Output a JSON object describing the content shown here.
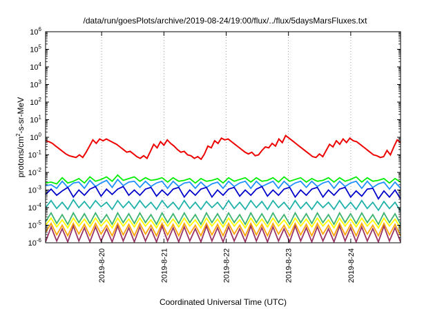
{
  "chart_data": {
    "type": "line",
    "title": "/data/run/goesPlots/archive/2019-08-24/19:00/flux/../flux/5daysMarsFluxes.txt",
    "xlabel": "Coordinated Universal Time (UTC)",
    "ylabel": {
      "pre": "protons/cm",
      "sup": "2",
      "post": "-s-sr-MeV"
    },
    "y_scale": "log",
    "ylim_exp": [
      -6,
      6
    ],
    "y_ticks": [
      {
        "base": "10",
        "exp": "6"
      },
      {
        "base": "10",
        "exp": "5"
      },
      {
        "base": "10",
        "exp": "4"
      },
      {
        "base": "10",
        "exp": "3"
      },
      {
        "base": "10",
        "exp": "2"
      },
      {
        "base": "10",
        "exp": "1"
      },
      {
        "base": "10",
        "exp": "0"
      },
      {
        "base": "10",
        "exp": "-1"
      },
      {
        "base": "10",
        "exp": "-2"
      },
      {
        "base": "10",
        "exp": "-3"
      },
      {
        "base": "10",
        "exp": "-4"
      },
      {
        "base": "10",
        "exp": "-5"
      },
      {
        "base": "10",
        "exp": "-6"
      }
    ],
    "x_ticks": [
      "2019-8-20",
      "2019-8-21",
      "2019-8-22",
      "2019-8-23",
      "2019-8-24"
    ],
    "xlim_days": [
      19.1,
      24.8
    ],
    "grid": true,
    "series": [
      {
        "color": "#ee0000",
        "log_values": [
          -0.2,
          -0.25,
          -0.35,
          -0.5,
          -0.65,
          -0.8,
          -0.95,
          -1.05,
          -1.1,
          -1.15,
          -1.0,
          -1.15,
          -0.85,
          -0.5,
          -0.15,
          -0.35,
          -0.1,
          -0.2,
          -0.1,
          -0.2,
          -0.3,
          -0.4,
          -0.55,
          -0.7,
          -0.85,
          -0.8,
          -0.95,
          -1.1,
          -1.2,
          -1.05,
          -1.2,
          -0.8,
          -0.4,
          -0.6,
          -0.25,
          -0.45,
          -0.15,
          -0.35,
          -0.5,
          -0.7,
          -0.85,
          -0.8,
          -1.0,
          -1.05,
          -1.2,
          -1.1,
          -1.25,
          -0.95,
          -0.5,
          -0.6,
          -0.2,
          -0.35,
          -0.05,
          -0.15,
          -0.1,
          -0.25,
          -0.4,
          -0.55,
          -0.7,
          -0.85,
          -0.95,
          -0.85,
          -1.05,
          -1.0,
          -0.75,
          -0.55,
          -0.6,
          -0.35,
          -0.5,
          -0.1,
          -0.3,
          0.1,
          -0.05,
          -0.2,
          -0.35,
          -0.5,
          -0.65,
          -0.8,
          -0.95,
          -1.1,
          -1.15,
          -0.95,
          -1.1,
          -0.75,
          -0.4,
          -0.55,
          -0.2,
          -0.4,
          -0.1,
          -0.3,
          -0.05,
          -0.2,
          -0.25,
          -0.4,
          -0.55,
          -0.7,
          -0.85,
          -1.0,
          -1.05,
          -1.15,
          -1.1,
          -0.75,
          -1.0,
          -0.55,
          -0.15,
          -0.3
        ]
      },
      {
        "color": "#00ee00",
        "log_values": [
          -2.6,
          -2.55,
          -2.65,
          -2.3,
          -2.6,
          -2.5,
          -2.35,
          -2.6,
          -2.25,
          -2.5,
          -2.4,
          -2.25,
          -2.5,
          -2.15,
          -2.45,
          -2.35,
          -2.25,
          -2.5,
          -2.3,
          -2.45,
          -2.4,
          -2.3,
          -2.55,
          -2.3,
          -2.5,
          -2.45,
          -2.35,
          -2.6,
          -2.35,
          -2.5,
          -2.45,
          -2.35,
          -2.6,
          -2.3,
          -2.5,
          -2.4,
          -2.3,
          -2.55,
          -2.3,
          -2.5,
          -2.45,
          -2.3,
          -2.55,
          -2.25,
          -2.5,
          -2.4,
          -2.3,
          -2.55,
          -2.35,
          -2.5,
          -2.45,
          -2.3,
          -2.55,
          -2.3,
          -2.5,
          -2.4,
          -2.25,
          -2.55,
          -2.3,
          -2.5,
          -2.45,
          -2.35,
          -2.6,
          -2.35,
          -2.55
        ]
      },
      {
        "color": "#1e90ff",
        "log_values": [
          -2.75,
          -2.7,
          -2.9,
          -2.5,
          -2.85,
          -2.6,
          -2.55,
          -2.9,
          -2.45,
          -2.8,
          -2.6,
          -2.45,
          -2.85,
          -2.4,
          -2.75,
          -2.55,
          -2.5,
          -2.85,
          -2.5,
          -2.8,
          -2.6,
          -2.5,
          -2.9,
          -2.5,
          -2.8,
          -2.6,
          -2.55,
          -2.9,
          -2.55,
          -2.85,
          -2.65,
          -2.55,
          -2.9,
          -2.5,
          -2.8,
          -2.6,
          -2.5,
          -2.9,
          -2.5,
          -2.8,
          -2.65,
          -2.5,
          -2.9,
          -2.5,
          -2.8,
          -2.6,
          -2.5,
          -2.85,
          -2.5,
          -2.8,
          -2.6,
          -2.5,
          -2.9,
          -2.5,
          -2.8,
          -2.6,
          -2.5,
          -2.9,
          -2.5,
          -2.85,
          -2.65,
          -2.55,
          -2.95,
          -2.55,
          -2.9
        ]
      },
      {
        "color": "#0000cc",
        "log_values": [
          -3.25,
          -2.95,
          -3.3,
          -3.05,
          -2.85,
          -3.4,
          -3.0,
          -3.3,
          -2.95,
          -2.8,
          -3.35,
          -2.95,
          -3.25,
          -2.95,
          -2.8,
          -3.3,
          -3.0,
          -3.3,
          -2.95,
          -2.85,
          -3.35,
          -3.0,
          -3.3,
          -2.95,
          -2.85,
          -3.4,
          -3.0,
          -3.3,
          -2.95,
          -2.85,
          -3.4,
          -3.0,
          -3.3,
          -2.95,
          -2.85,
          -3.35,
          -3.0,
          -3.3,
          -2.95,
          -2.8,
          -3.35,
          -3.0,
          -3.3,
          -2.95,
          -2.85,
          -3.4,
          -3.0,
          -3.3,
          -2.95,
          -2.85,
          -3.4,
          -3.0,
          -3.3,
          -2.95,
          -2.85,
          -3.4,
          -3.05,
          -3.35,
          -2.95,
          -2.9,
          -3.5,
          -3.05,
          -3.4,
          -3.0,
          -3.5
        ]
      },
      {
        "color": "#20b2aa",
        "log_values": [
          -4.0,
          -3.6,
          -4.05,
          -3.7,
          -4.1,
          -3.55,
          -4.0,
          -3.65,
          -4.05,
          -3.6,
          -3.95,
          -3.7,
          -4.1,
          -3.6,
          -4.0,
          -3.65,
          -4.05,
          -3.6,
          -4.0,
          -3.7,
          -4.1,
          -3.6,
          -4.0,
          -3.7,
          -4.1,
          -3.6,
          -4.05,
          -3.7,
          -4.1,
          -3.65,
          -4.0,
          -3.7,
          -4.1,
          -3.6,
          -4.05,
          -3.7,
          -4.1,
          -3.6,
          -4.0,
          -3.65,
          -4.1,
          -3.6,
          -4.0,
          -3.7,
          -4.1,
          -3.6,
          -4.05,
          -3.7,
          -4.1,
          -3.65,
          -4.0,
          -3.7,
          -4.1,
          -3.6,
          -4.05,
          -3.7,
          -4.1,
          -3.6,
          -4.05,
          -3.7,
          -4.15,
          -3.65,
          -4.05,
          -3.7,
          -4.2
        ]
      },
      {
        "color": "#3cb371",
        "log_values": [
          -4.8,
          -4.3,
          -4.9,
          -4.4,
          -4.95,
          -4.3,
          -4.85,
          -4.35,
          -4.9,
          -4.3,
          -4.85,
          -4.4,
          -4.95,
          -4.3,
          -4.85,
          -4.35,
          -4.9,
          -4.3,
          -4.85,
          -4.4,
          -4.95,
          -4.3,
          -4.85,
          -4.35,
          -4.9,
          -4.3,
          -4.85,
          -4.4,
          -4.95,
          -4.3,
          -4.85,
          -4.35,
          -4.9,
          -4.3,
          -4.85,
          -4.4,
          -4.95,
          -4.3,
          -4.85,
          -4.35,
          -4.9,
          -4.3,
          -4.85,
          -4.4,
          -4.95,
          -4.3,
          -4.85,
          -4.35,
          -4.9,
          -4.3,
          -4.85,
          -4.4,
          -4.95,
          -4.3,
          -4.85,
          -4.35,
          -4.9,
          -4.3,
          -4.85,
          -4.4,
          -4.95,
          -4.3,
          -4.85,
          -4.35,
          -4.95
        ]
      },
      {
        "color": "#ffff00",
        "log_values": [
          -5.0,
          -4.6,
          -5.1,
          -4.7,
          -5.15,
          -4.6,
          -5.05,
          -4.65,
          -5.1,
          -4.6,
          -5.05,
          -4.7,
          -5.15,
          -4.6,
          -5.05,
          -4.65,
          -5.1,
          -4.6,
          -5.05,
          -4.7,
          -5.15,
          -4.6,
          -5.05,
          -4.65,
          -5.1,
          -4.6,
          -5.05,
          -4.7,
          -5.15,
          -4.6,
          -5.05,
          -4.65,
          -5.1,
          -4.6,
          -5.05,
          -4.7,
          -5.15,
          -4.6,
          -5.05,
          -4.65,
          -5.1,
          -4.6,
          -5.05,
          -4.7,
          -5.15,
          -4.6,
          -5.05,
          -4.65,
          -5.1,
          -4.6,
          -5.05,
          -4.7,
          -5.15,
          -4.6,
          -5.05,
          -4.65,
          -5.1,
          -4.6,
          -5.05,
          -4.7,
          -5.15,
          -4.6,
          -5.05,
          -4.65,
          -5.15
        ]
      },
      {
        "color": "#ffa500",
        "log_values": [
          -5.4,
          -4.9,
          -5.55,
          -5.0,
          -5.6,
          -4.9,
          -5.5,
          -4.95,
          -5.6,
          -4.9,
          -5.5,
          -5.0,
          -5.6,
          -4.9,
          -5.55,
          -4.95,
          -5.6,
          -4.9,
          -5.5,
          -5.0,
          -5.6,
          -4.9,
          -5.55,
          -4.95,
          -5.6,
          -4.9,
          -5.5,
          -5.0,
          -5.6,
          -4.9,
          -5.55,
          -4.95,
          -5.6,
          -4.9,
          -5.5,
          -5.0,
          -5.6,
          -4.9,
          -5.55,
          -4.95,
          -5.6,
          -4.9,
          -5.5,
          -5.0,
          -5.6,
          -4.9,
          -5.55,
          -4.95,
          -5.6,
          -4.9,
          -5.5,
          -5.0,
          -5.6,
          -4.9,
          -5.55,
          -4.95,
          -5.6,
          -4.9,
          -5.5,
          -5.0,
          -5.6,
          -4.9,
          -5.55,
          -4.95,
          -5.6
        ]
      },
      {
        "color": "#993366",
        "log_values": [
          -5.95,
          -5.1,
          -5.9,
          -5.2,
          -5.95,
          -5.05,
          -5.9,
          -5.15,
          -5.95,
          -5.1,
          -5.9,
          -5.2,
          -5.95,
          -5.05,
          -5.9,
          -5.15,
          -5.95,
          -5.1,
          -5.9,
          -5.2,
          -5.95,
          -5.05,
          -5.9,
          -5.15,
          -5.95,
          -5.1,
          -5.9,
          -5.2,
          -5.95,
          -5.05,
          -5.9,
          -5.15,
          -5.95,
          -5.1,
          -5.9,
          -5.2,
          -5.95,
          -5.05,
          -5.9,
          -5.15,
          -5.95,
          -5.1,
          -5.9,
          -5.2,
          -5.95,
          -5.05,
          -5.9,
          -5.15,
          -5.95,
          -5.1,
          -5.9,
          -5.2,
          -5.95,
          -5.05,
          -5.9,
          -5.15,
          -5.95,
          -5.1,
          -5.9,
          -5.2,
          -5.95,
          -5.05,
          -5.9,
          -5.15,
          -5.95
        ]
      }
    ]
  }
}
